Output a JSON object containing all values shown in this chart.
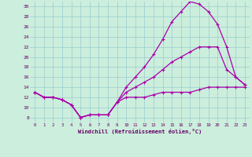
{
  "xlabel": "Windchill (Refroidissement éolien,°C)",
  "x_ticks": [
    0,
    1,
    2,
    3,
    4,
    5,
    6,
    7,
    8,
    9,
    10,
    11,
    12,
    13,
    14,
    15,
    16,
    17,
    18,
    19,
    20,
    21,
    22,
    23
  ],
  "ylim": [
    7,
    31
  ],
  "xlim": [
    -0.5,
    23.5
  ],
  "yticks": [
    8,
    10,
    12,
    14,
    16,
    18,
    20,
    22,
    24,
    26,
    28,
    30
  ],
  "bg_color": "#cceedd",
  "line_color": "#aa00aa",
  "grid_color": "#99cccc",
  "line1_x": [
    0,
    1,
    2,
    3,
    4,
    5,
    6,
    7,
    8,
    9,
    10,
    11,
    12,
    13,
    14,
    15,
    16,
    17,
    18,
    19,
    20,
    21,
    22,
    23
  ],
  "line1_y": [
    13,
    12,
    12,
    11.5,
    10.5,
    8,
    8.5,
    8.5,
    8.5,
    11,
    12,
    12,
    12,
    12.5,
    13,
    13,
    13,
    13,
    13.5,
    14,
    14,
    14,
    14,
    14
  ],
  "line2_x": [
    0,
    1,
    2,
    3,
    4,
    5,
    6,
    7,
    8,
    9,
    10,
    11,
    12,
    13,
    14,
    15,
    16,
    17,
    18,
    19,
    20,
    21,
    22,
    23
  ],
  "line2_y": [
    13,
    12,
    12,
    11.5,
    10.5,
    8,
    8.5,
    8.5,
    8.5,
    11,
    13,
    14,
    15,
    16,
    17.5,
    19,
    20,
    21,
    22,
    22,
    22,
    17.5,
    16,
    14.5
  ],
  "line3_x": [
    0,
    1,
    2,
    3,
    4,
    5,
    6,
    7,
    8,
    9,
    10,
    11,
    12,
    13,
    14,
    15,
    16,
    17,
    18,
    19,
    20,
    21,
    22,
    23
  ],
  "line3_y": [
    13,
    12,
    12,
    11.5,
    10.5,
    8,
    8.5,
    8.5,
    8.5,
    11,
    14,
    16,
    18,
    20.5,
    23.5,
    27,
    29,
    31,
    30.5,
    29,
    26.5,
    22,
    16,
    14.5
  ]
}
